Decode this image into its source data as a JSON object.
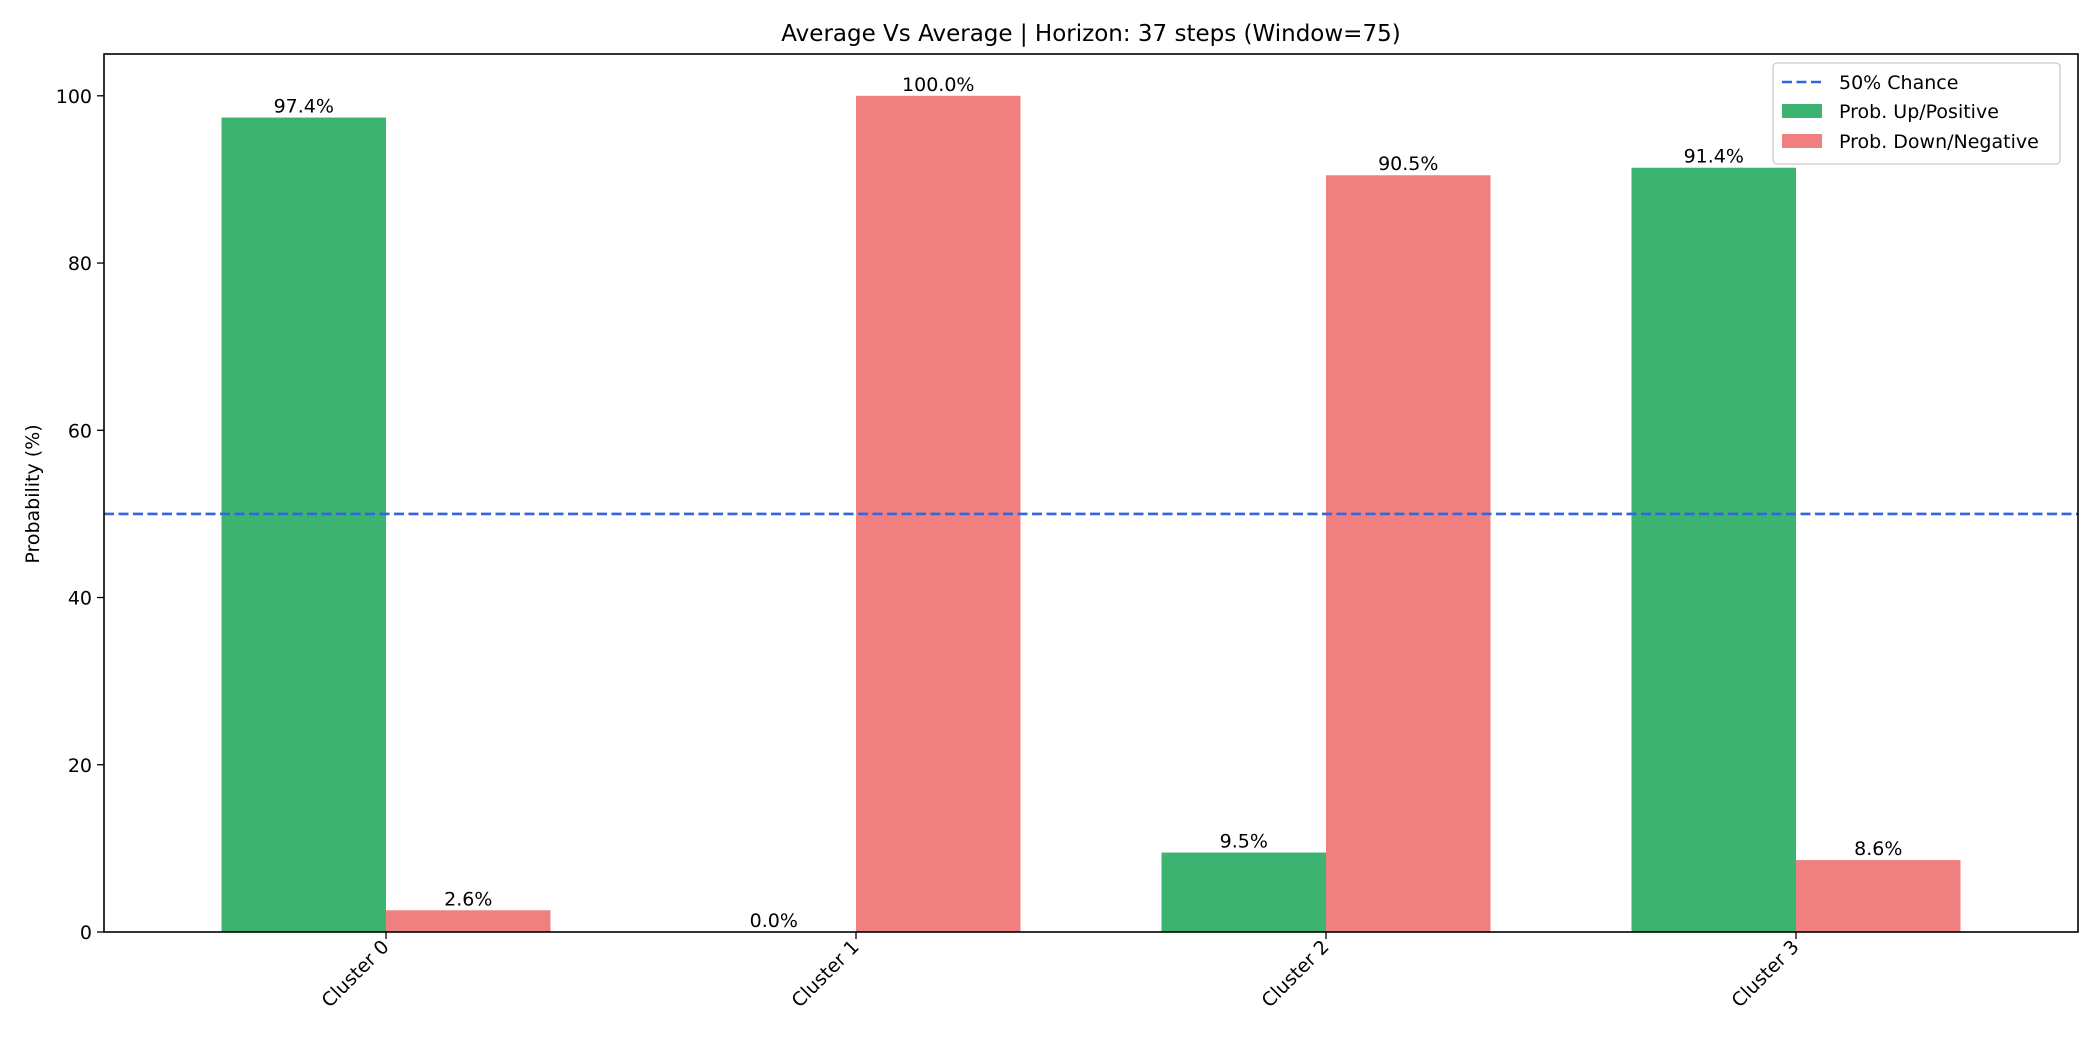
{
  "chart_data": {
    "type": "bar",
    "title": "Average Vs Average | Horizon: 37 steps (Window=75)",
    "xlabel": "",
    "ylabel": "Probability (%)",
    "ylim": [
      0,
      105
    ],
    "yticks": [
      0,
      20,
      40,
      60,
      80,
      100
    ],
    "categories": [
      "Cluster 0",
      "Cluster 1",
      "Cluster 2",
      "Cluster 3"
    ],
    "series": [
      {
        "name": "Prob. Up/Positive",
        "color": "#3cb371",
        "values": [
          97.4,
          0.0,
          9.5,
          91.4
        ],
        "labels": [
          "97.4%",
          "0.0%",
          "9.5%",
          "91.4%"
        ]
      },
      {
        "name": "Prob. Down/Negative",
        "color": "#f08080",
        "values": [
          2.6,
          100.0,
          90.5,
          8.6
        ],
        "labels": [
          "2.6%",
          "100.0%",
          "90.5%",
          "8.6%"
        ]
      }
    ],
    "reference_line": {
      "name": "50% Chance",
      "value": 50,
      "color": "#3366dd",
      "style": "dashed"
    },
    "legend_position": "top-right",
    "grid": false,
    "tick_label_rotation": "45"
  }
}
